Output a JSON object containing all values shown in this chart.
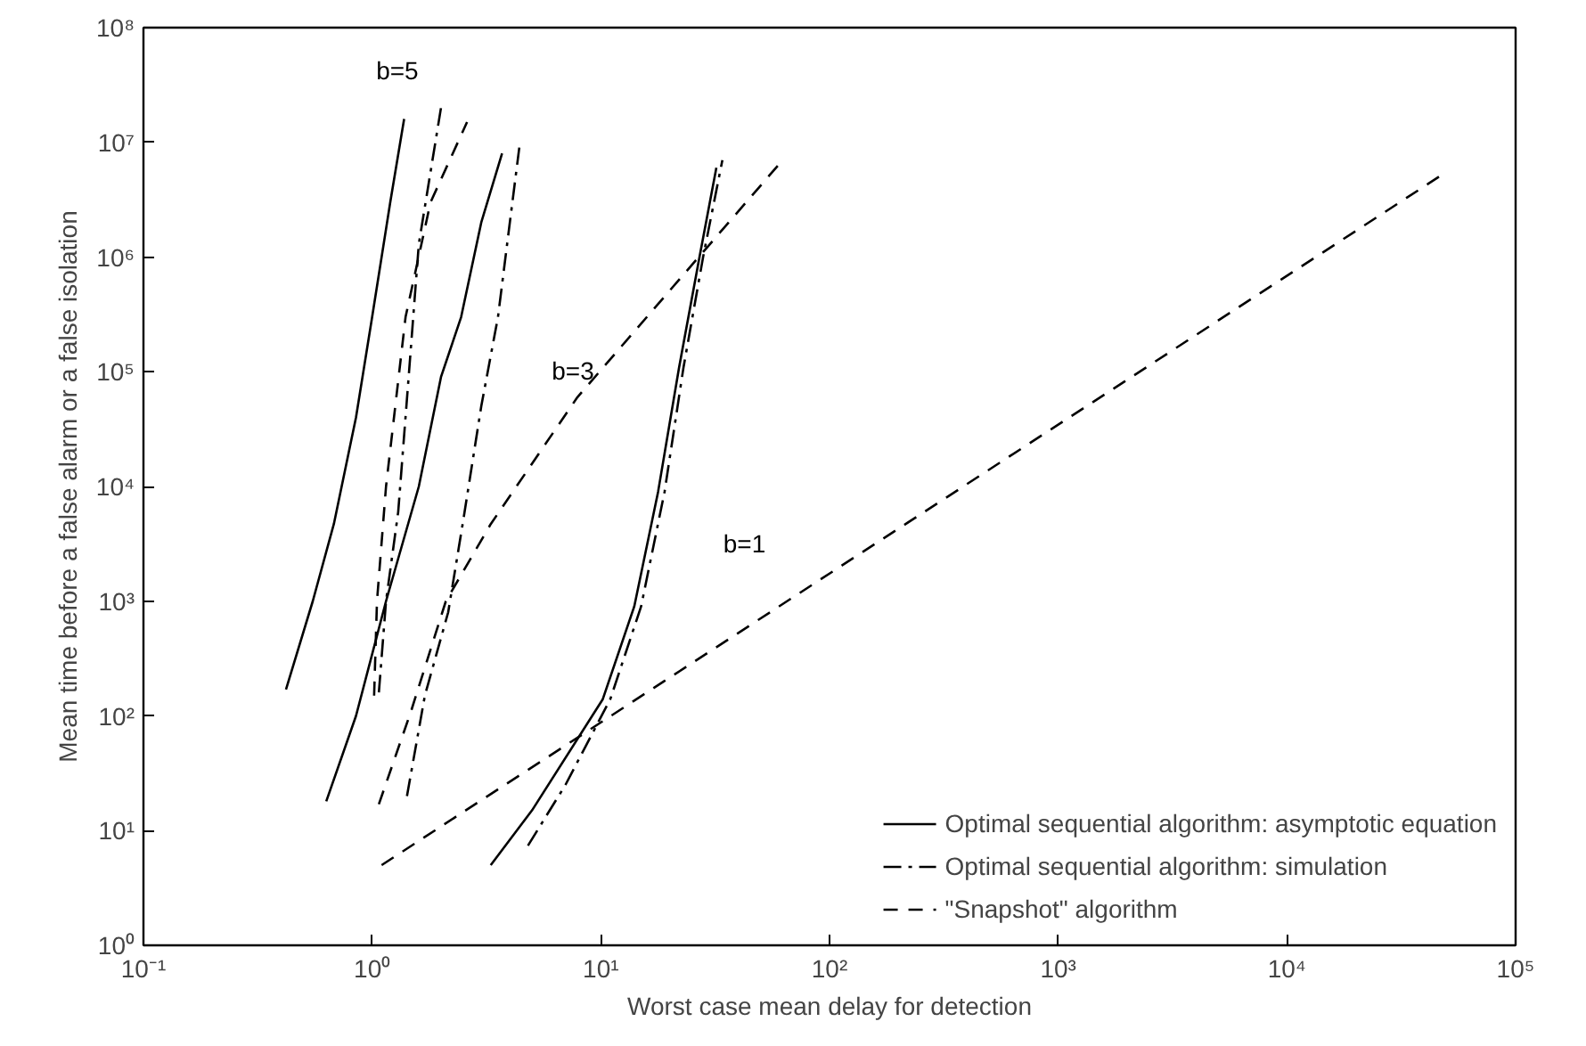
{
  "chart_data": {
    "type": "line",
    "xlabel": "Worst case mean delay for detection",
    "ylabel": "Mean time before a false alarm or a false isolation",
    "log": "xy",
    "xlim": [
      0.1,
      100000
    ],
    "ylim": [
      1,
      100000000
    ],
    "xticks": [
      {
        "value": 0.1,
        "label": "10⁻¹"
      },
      {
        "value": 1,
        "label": "10⁰"
      },
      {
        "value": 10,
        "label": "10¹"
      },
      {
        "value": 100,
        "label": "10²"
      },
      {
        "value": 1000,
        "label": "10³"
      },
      {
        "value": 10000,
        "label": "10⁴"
      },
      {
        "value": 100000,
        "label": "10⁵"
      }
    ],
    "yticks": [
      {
        "value": 1,
        "label": "10⁰"
      },
      {
        "value": 10,
        "label": "10¹"
      },
      {
        "value": 100,
        "label": "10²"
      },
      {
        "value": 1000,
        "label": "10³"
      },
      {
        "value": 10000,
        "label": "10⁴"
      },
      {
        "value": 100000,
        "label": "10⁵"
      },
      {
        "value": 1000000,
        "label": "10⁶"
      },
      {
        "value": 10000000,
        "label": "10⁷"
      },
      {
        "value": 100000000,
        "label": "10⁸"
      }
    ],
    "grid": false,
    "legend": "bottom right",
    "marker": "none",
    "series": [
      {
        "name": "Optimal sequential algorithm: asymptotic equation",
        "color": "#000000",
        "line_style": "solid",
        "x": [
          0.42,
          0.55,
          0.68,
          0.85,
          1.0,
          1.2,
          1.38
        ],
        "values": [
          170,
          1000,
          4700,
          40000,
          300000,
          3000000,
          16000000
        ]
      },
      {
        "name": "Optimal sequential algorithm: simulation",
        "color": "#000000",
        "line_style": "dashdot",
        "x": [
          1.07,
          1.15,
          1.3,
          1.45,
          1.6,
          2.0
        ],
        "values": [
          160,
          1000,
          6000,
          100000,
          1300000,
          20000000
        ]
      },
      {
        "name": "\"Snapshot\" algorithm",
        "color": "#000000",
        "line_style": "dashed",
        "x": [
          1.02,
          1.05,
          1.15,
          1.4,
          1.8,
          2.6
        ],
        "values": [
          150,
          1000,
          10000,
          300000,
          3000000,
          15000000
        ]
      },
      {
        "color": "#000000",
        "line_style": "solid",
        "x": [
          0.63,
          0.85,
          1.15,
          1.6,
          2.0,
          2.45,
          3.0,
          3.7
        ],
        "values": [
          18,
          100,
          1000,
          10000,
          90000,
          300000,
          2000000,
          8000000
        ]
      },
      {
        "color": "#000000",
        "line_style": "dashdot",
        "x": [
          1.42,
          1.7,
          2.15,
          2.5,
          3.0,
          3.55,
          4.0,
          4.4
        ],
        "values": [
          20,
          150,
          800,
          5000,
          50000,
          300000,
          2000000,
          9000000
        ]
      },
      {
        "color": "#000000",
        "line_style": "dashed",
        "x": [
          1.07,
          1.48,
          2.1,
          3.3,
          7.9,
          29,
          62
        ],
        "values": [
          17,
          110,
          1000,
          4700,
          60000,
          1200000,
          6900000
        ]
      },
      {
        "color": "#000000",
        "line_style": "solid",
        "x": [
          3.3,
          5,
          10.2,
          14,
          17.8,
          22,
          27,
          32
        ],
        "values": [
          5,
          15,
          140,
          900,
          9000,
          110000,
          1000000,
          6000000
        ]
      },
      {
        "color": "#000000",
        "line_style": "dashdot",
        "x": [
          4.8,
          7,
          11,
          15,
          19,
          23,
          28,
          34
        ],
        "values": [
          7.4,
          25,
          140,
          900,
          9000,
          110000,
          1000000,
          7000000
        ]
      },
      {
        "color": "#000000",
        "line_style": "dashed",
        "x": [
          1.1,
          49000
        ],
        "values": [
          5,
          5400000
        ]
      }
    ],
    "annotations": [
      "b=5",
      "b=3",
      "b=1"
    ]
  }
}
